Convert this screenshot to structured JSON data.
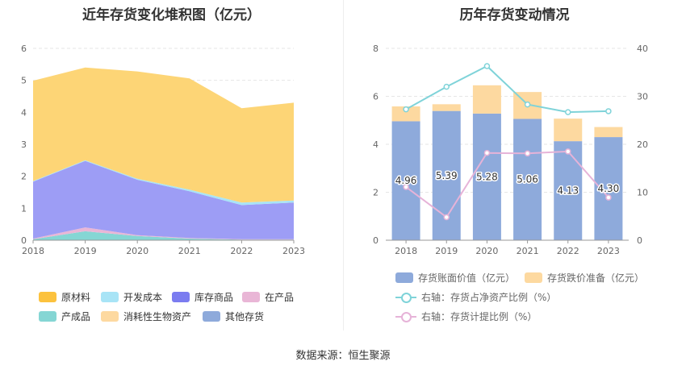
{
  "left_title": "近年存货变化堆积图（亿元）",
  "right_title": "历年存货变动情况",
  "source": "数据来源：恒生聚源",
  "chart_data": [
    {
      "type": "area",
      "stacked": true,
      "title": "近年存货变化堆积图（亿元）",
      "categories": [
        "2018",
        "2019",
        "2020",
        "2021",
        "2022",
        "2023"
      ],
      "ylim": [
        0,
        6
      ],
      "yticks": [
        0,
        1,
        2,
        3,
        4,
        5,
        6
      ],
      "series": [
        {
          "name": "产成品",
          "color": "#85d6d4",
          "values": [
            0.03,
            0.28,
            0.13,
            0.05,
            0.02,
            0.02
          ]
        },
        {
          "name": "在产品",
          "color": "#e9b6d6",
          "values": [
            0.02,
            0.12,
            0.03,
            0.02,
            0.01,
            0.01
          ]
        },
        {
          "name": "库存商品",
          "color": "#9d9df5",
          "values": [
            1.78,
            2.08,
            1.73,
            1.46,
            1.07,
            1.15
          ]
        },
        {
          "name": "开发成本",
          "color": "#a8e4f6",
          "values": [
            0.02,
            0.02,
            0.03,
            0.05,
            0.08,
            0.06
          ]
        },
        {
          "name": "原材料",
          "color": "#fdd576",
          "values": [
            3.14,
            2.9,
            3.36,
            3.48,
            2.95,
            3.06
          ]
        },
        {
          "name": "消耗性生物资产",
          "color": "#fdd9a0",
          "values": [
            0,
            0,
            0,
            0,
            0,
            0
          ]
        },
        {
          "name": "其他存货",
          "color": "#8eaadb",
          "values": [
            0,
            0,
            0,
            0,
            0,
            0
          ]
        }
      ],
      "legend": [
        {
          "name": "原材料",
          "color": "#fcc23e"
        },
        {
          "name": "开发成本",
          "color": "#a8e4f6"
        },
        {
          "name": "库存商品",
          "color": "#7b7cf0"
        },
        {
          "name": "在产品",
          "color": "#e9b6d6"
        },
        {
          "name": "产成品",
          "color": "#85d6d4"
        },
        {
          "name": "消耗性生物资产",
          "color": "#fdd9a0"
        },
        {
          "name": "其他存货",
          "color": "#8eaadb"
        }
      ]
    },
    {
      "type": "bar",
      "title": "历年存货变动情况",
      "categories": [
        "2018",
        "2019",
        "2020",
        "2021",
        "2022",
        "2023"
      ],
      "ylim": [
        0,
        8
      ],
      "yticks": [
        0,
        2,
        4,
        6,
        8
      ],
      "y2lim": [
        0,
        40
      ],
      "y2ticks": [
        0,
        10,
        20,
        30,
        40
      ],
      "bars": {
        "name": "存货账面价值（亿元）",
        "color": "#8eaadb",
        "values": [
          4.96,
          5.39,
          5.28,
          5.06,
          4.13,
          4.3
        ],
        "labels": [
          "4.96",
          "5.39",
          "5.28",
          "5.06",
          "4.13",
          "4.30"
        ]
      },
      "stack": {
        "name": "存货跌价准备（亿元）",
        "color": "#fdd9a0",
        "values": [
          0.62,
          0.28,
          1.18,
          1.12,
          0.94,
          0.42
        ]
      },
      "lines": [
        {
          "name": "右轴：存货占净资产比例（%）",
          "color": "#7fd3d9",
          "values": [
            27.3,
            32.0,
            36.3,
            28.3,
            26.7,
            26.9
          ]
        },
        {
          "name": "右轴：存货计提比例（%）",
          "color": "#e6b3d8",
          "values": [
            11.1,
            4.8,
            18.2,
            18.1,
            18.5,
            8.9
          ]
        }
      ]
    }
  ]
}
